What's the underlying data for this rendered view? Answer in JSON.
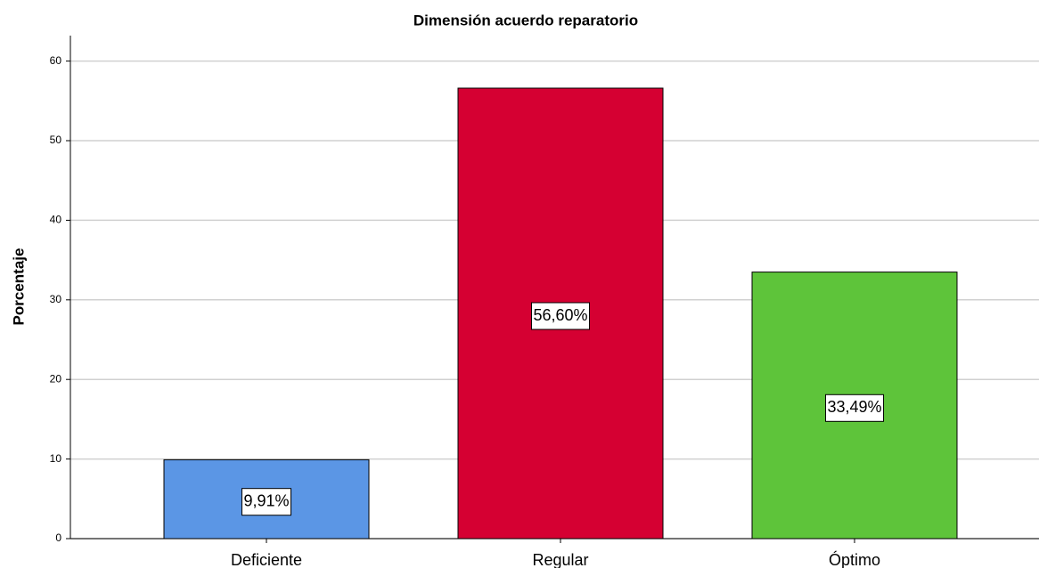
{
  "chart_data": {
    "type": "bar",
    "title": "Dimensión acuerdo reparatorio",
    "y_label": "Porcentaje",
    "categories": [
      "Deficiente",
      "Regular",
      "Óptimo"
    ],
    "values": [
      9.91,
      56.6,
      33.49
    ],
    "value_labels": [
      "9,91%",
      "56,60%",
      "33,49%"
    ],
    "colors": [
      "#5b96e5",
      "#d50032",
      "#5ec43a"
    ],
    "ylim": [
      0,
      63.2
    ],
    "yticks": [
      0,
      10,
      20,
      30,
      40,
      50,
      60
    ],
    "grid": true
  }
}
